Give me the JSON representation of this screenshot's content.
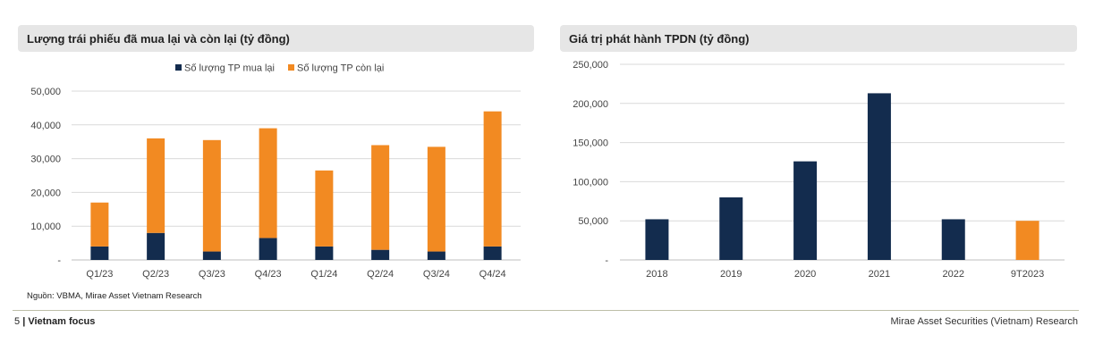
{
  "left_panel": {
    "title": "Lượng trái phiếu đã mua lại và còn lại (tỷ đồng)"
  },
  "right_panel": {
    "title": "Giá trị phát hành TPDN (tỷ đồng)"
  },
  "source": "Nguồn: VBMA, Mirae Asset Vietnam Research",
  "footer": {
    "page": "5",
    "separator": "|",
    "section": "Vietnam focus",
    "right": "Mirae Asset Securities (Vietnam) Research"
  },
  "colors": {
    "navy": "#132c4e",
    "orange": "#f28a22",
    "grid": "#d9d9d9"
  },
  "chart_data": [
    {
      "type": "bar",
      "stacked": true,
      "categories": [
        "Q1/23",
        "Q2/23",
        "Q3/23",
        "Q4/23",
        "Q1/24",
        "Q2/24",
        "Q3/24",
        "Q4/24"
      ],
      "series": [
        {
          "name": "Số lượng TP mua lại",
          "color": "#132c4e",
          "values": [
            4000,
            8000,
            2500,
            6500,
            4000,
            3000,
            2500,
            4000
          ]
        },
        {
          "name": "Số lượng TP còn lại",
          "color": "#f28a22",
          "values": [
            13000,
            28000,
            33000,
            32500,
            22500,
            31000,
            31000,
            40000
          ]
        }
      ],
      "yticks": [
        "-",
        "10,000",
        "20,000",
        "30,000",
        "40,000",
        "50,000"
      ],
      "ylim": [
        0,
        50000
      ],
      "legend": "top-center",
      "grid": true
    },
    {
      "type": "bar",
      "categories": [
        "2018",
        "2019",
        "2020",
        "2021",
        "2022",
        "9T2023"
      ],
      "values": [
        52000,
        80000,
        126000,
        213000,
        52000,
        50000
      ],
      "bar_colors": [
        "#132c4e",
        "#132c4e",
        "#132c4e",
        "#132c4e",
        "#132c4e",
        "#f28a22"
      ],
      "yticks": [
        "-",
        "50,000",
        "100,000",
        "150,000",
        "200,000",
        "250,000"
      ],
      "ylim": [
        0,
        250000
      ],
      "grid": true
    }
  ]
}
